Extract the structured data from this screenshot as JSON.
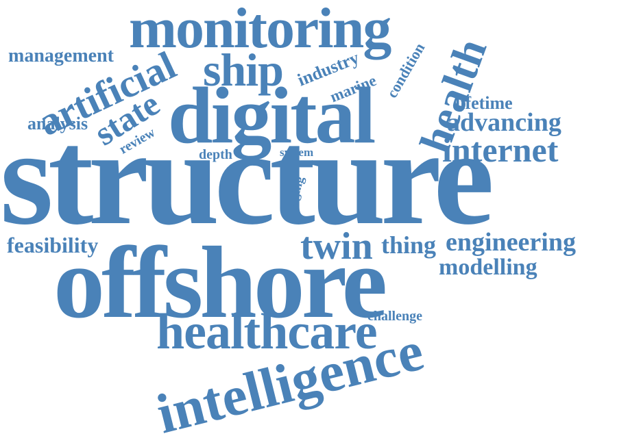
{
  "color": "#4a82b8",
  "background": "#ffffff",
  "words": {
    "structure": "structure",
    "offshore": "offshore",
    "digital": "digital",
    "monitoring": "monitoring",
    "intelligence": "intelligence",
    "healthcare": "healthcare",
    "health": "health",
    "ship": "ship",
    "artificial": "artificial",
    "twin": "twin",
    "internet": "internet",
    "state": "state",
    "engineering": "engineering",
    "advancing": "advancing",
    "thing": "thing",
    "modelling": "modelling",
    "feasibility": "feasibility",
    "management": "management",
    "industry": "industry",
    "analysis": "analysis",
    "lifetime": "lifetime",
    "marine": "marine",
    "condition": "condition",
    "challenge": "challenge",
    "review": "review",
    "depth": "depth",
    "system": "system",
    "aging": "aging"
  }
}
